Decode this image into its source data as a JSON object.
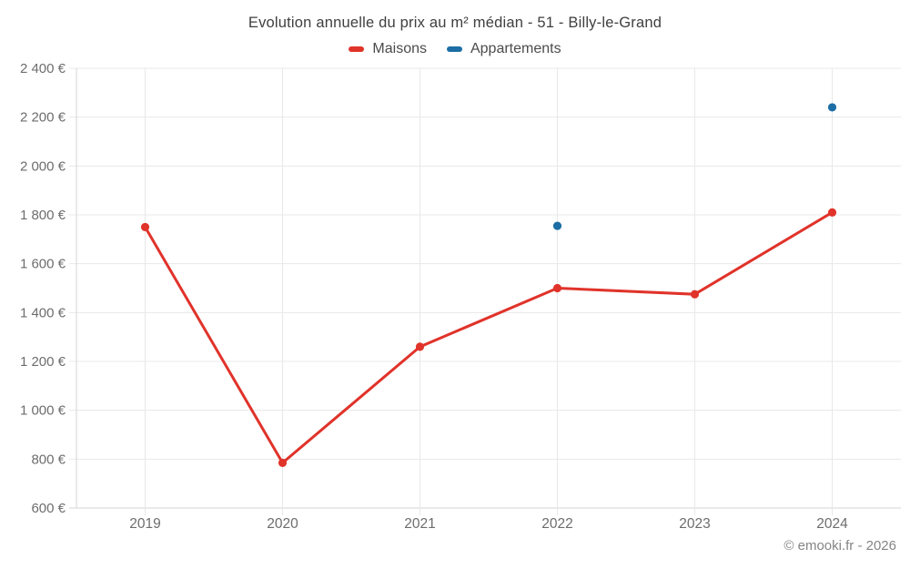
{
  "chart_data": {
    "type": "line",
    "title": "Evolution annuelle du prix au m² médian - 51 - Billy-le-Grand",
    "categories": [
      "2019",
      "2020",
      "2021",
      "2022",
      "2023",
      "2024"
    ],
    "series": [
      {
        "name": "Maisons",
        "color": "#e0332a",
        "values": [
          1750,
          785,
          1260,
          1500,
          1475,
          1810
        ]
      },
      {
        "name": "Appartements",
        "color": "#1c6ea4",
        "values": [
          null,
          null,
          null,
          1755,
          null,
          2240
        ]
      }
    ],
    "ylim": [
      600,
      2400
    ],
    "ytick_step": 200,
    "ytick_suffix": "€",
    "grid": true,
    "legend_position": "top"
  },
  "footer": {
    "copyright": "© emooki.fr - 2026"
  },
  "colors": {
    "gridline": "#e8e8e8",
    "axis_border": "#d6d6d6",
    "tick_label": "#6d6d6d",
    "title_text": "#3f3f3f",
    "legend_text": "#4b4b4b",
    "copyright_text": "#858585",
    "background": "#ffffff"
  }
}
